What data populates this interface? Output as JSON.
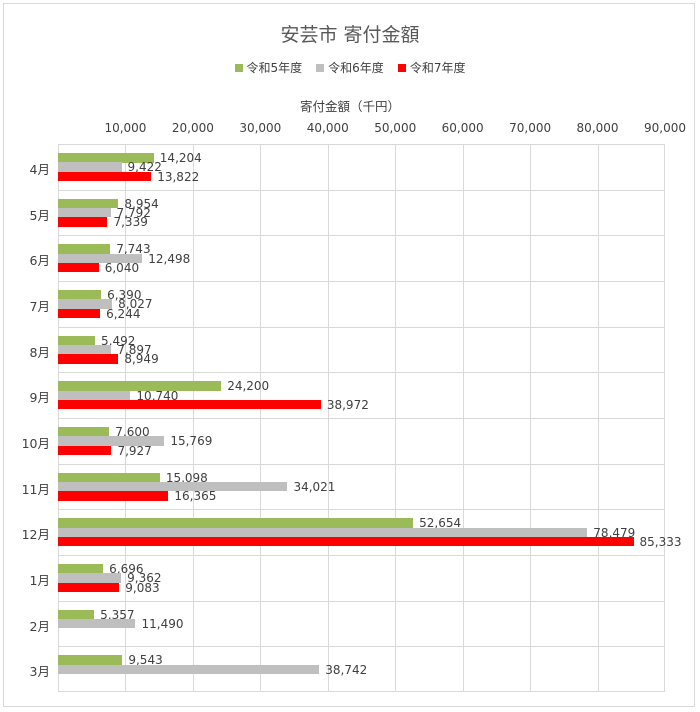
{
  "chart_data": {
    "type": "bar",
    "orientation": "horizontal",
    "title": "安芸市 寄付金額",
    "xlabel": "寄付金額（千円）",
    "ylabel": "",
    "xlim": [
      0,
      90000
    ],
    "x_ticks": [
      "10,000",
      "20,000",
      "30,000",
      "40,000",
      "50,000",
      "60,000",
      "70,000",
      "80,000",
      "90,000"
    ],
    "grid": true,
    "legend_position": "top",
    "categories": [
      "4月",
      "5月",
      "6月",
      "7月",
      "8月",
      "9月",
      "10月",
      "11月",
      "12月",
      "1月",
      "2月",
      "3月"
    ],
    "series": [
      {
        "name": "令和5年度",
        "color": "#9bbb59",
        "values": [
          14204,
          8954,
          7743,
          6390,
          5492,
          24200,
          7600,
          15098,
          52654,
          6696,
          5357,
          9543
        ],
        "labels": [
          "14,204",
          "8,954",
          "7,743",
          "6,390",
          "5,492",
          "24,200",
          "7,600",
          "15,098",
          "52,654",
          "6,696",
          "5,357",
          "9,543"
        ]
      },
      {
        "name": "令和6年度",
        "color": "#bfbfbf",
        "values": [
          9422,
          7792,
          12498,
          8027,
          7897,
          10740,
          15769,
          34021,
          78479,
          9362,
          11490,
          38742
        ],
        "labels": [
          "9,422",
          "7,792",
          "12,498",
          "8,027",
          "7,897",
          "10,740",
          "15,769",
          "34,021",
          "78,479",
          "9,362",
          "11,490",
          "38,742"
        ]
      },
      {
        "name": "令和7年度",
        "color": "#ff0000",
        "values": [
          13822,
          7339,
          6040,
          6244,
          8949,
          38972,
          7927,
          16365,
          85333,
          9083,
          null,
          null
        ],
        "labels": [
          "13,822",
          "7,339",
          "6,040",
          "6,244",
          "8,949",
          "38,972",
          "7,927",
          "16,365",
          "85,333",
          "9,083",
          "",
          ""
        ]
      }
    ]
  }
}
